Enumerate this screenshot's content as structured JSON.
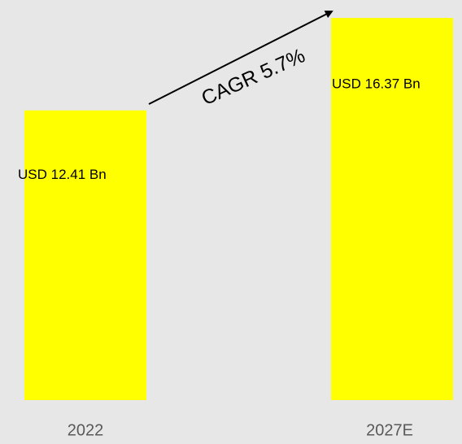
{
  "chart_data": {
    "type": "bar",
    "categories": [
      "2022",
      "2027E"
    ],
    "values": [
      12.41,
      16.37
    ],
    "value_labels": [
      "USD 12.41 Bn",
      "USD 16.37 Bn"
    ],
    "color": "#ffff00",
    "annotation": "CAGR 5.7%",
    "ylim": [
      0,
      17
    ]
  }
}
